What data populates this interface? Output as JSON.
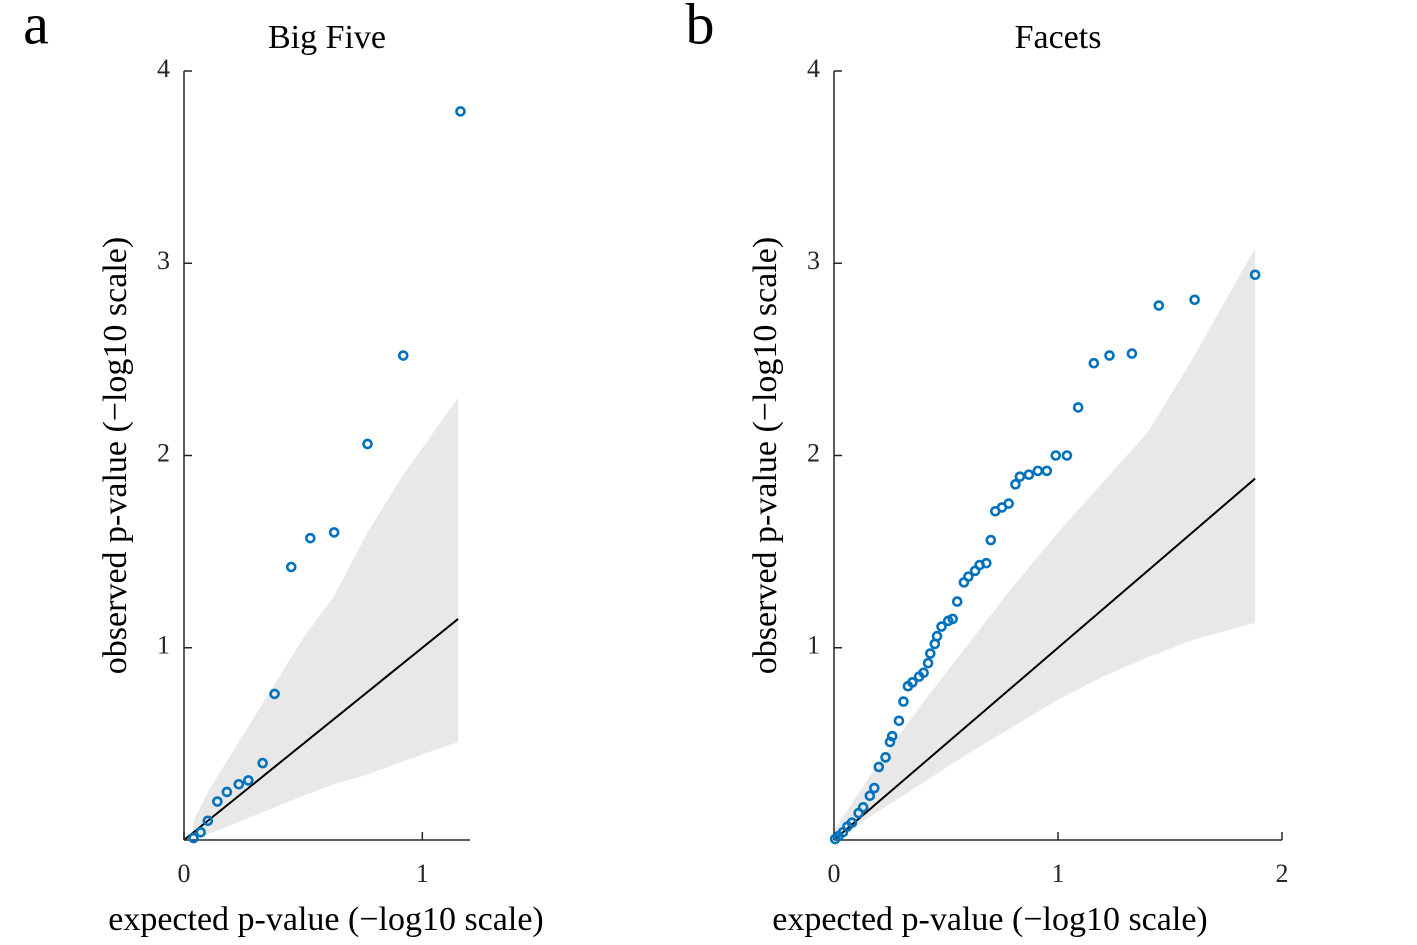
{
  "chart_data": [
    {
      "type": "scatter",
      "panel": "a",
      "title": "Big Five",
      "xlabel": "expected p-value (−log10 scale)",
      "ylabel": "observed p-value (−log10 scale)",
      "xlim": [
        0,
        1.2
      ],
      "ylim": [
        0,
        4
      ],
      "xticks": [
        0,
        1
      ],
      "yticks": [
        1,
        2,
        3,
        4
      ],
      "band": {
        "color": "#e8e8e8",
        "x": [
          0.04,
          0.1,
          0.2,
          0.3,
          0.4,
          0.5,
          0.63,
          0.77,
          0.92,
          1.15
        ],
        "lower": [
          0,
          0.03,
          0.08,
          0.13,
          0.18,
          0.23,
          0.29,
          0.34,
          0.41,
          0.51
        ],
        "upper": [
          0.1,
          0.25,
          0.45,
          0.65,
          0.85,
          1.05,
          1.27,
          1.6,
          1.9,
          2.3
        ]
      },
      "reference": {
        "color": "#000000",
        "x": [
          0,
          1.15
        ],
        "y": [
          0,
          1.15
        ]
      },
      "series": [
        {
          "color": "#0072bd",
          "x": [
            0.04,
            0.07,
            0.1,
            0.14,
            0.18,
            0.23,
            0.27,
            0.33,
            0.38,
            0.45,
            0.53,
            0.63,
            0.77,
            0.92,
            1.16
          ],
          "y": [
            0.01,
            0.04,
            0.1,
            0.2,
            0.25,
            0.29,
            0.31,
            0.4,
            0.76,
            1.42,
            1.57,
            1.6,
            2.06,
            2.52,
            3.79
          ]
        }
      ]
    },
    {
      "type": "scatter",
      "panel": "b",
      "title": "Facets",
      "xlabel": "expected p-value (−log10 scale)",
      "ylabel": "observed p-value (−log10 scale)",
      "xlim": [
        0,
        2
      ],
      "ylim": [
        0,
        4
      ],
      "xticks": [
        0,
        1,
        2
      ],
      "yticks": [
        1,
        2,
        3,
        4
      ],
      "band": {
        "color": "#e8e8e8",
        "x": [
          0,
          0.2,
          0.4,
          0.6,
          0.8,
          1.0,
          1.2,
          1.4,
          1.6,
          1.88
        ],
        "lower": [
          0,
          0.15,
          0.3,
          0.45,
          0.59,
          0.73,
          0.85,
          0.95,
          1.04,
          1.13
        ],
        "upper": [
          0.05,
          0.4,
          0.72,
          1.02,
          1.32,
          1.6,
          1.86,
          2.12,
          2.5,
          3.08
        ]
      },
      "reference": {
        "color": "#000000",
        "x": [
          0,
          1.88
        ],
        "y": [
          0,
          1.88
        ]
      },
      "series": [
        {
          "color": "#0072bd",
          "x": [
            0.005,
            0.02,
            0.04,
            0.06,
            0.08,
            0.11,
            0.13,
            0.16,
            0.18,
            0.2,
            0.23,
            0.25,
            0.26,
            0.29,
            0.31,
            0.33,
            0.35,
            0.38,
            0.4,
            0.42,
            0.43,
            0.45,
            0.46,
            0.48,
            0.51,
            0.53,
            0.55,
            0.58,
            0.6,
            0.63,
            0.65,
            0.68,
            0.7,
            0.72,
            0.75,
            0.78,
            0.81,
            0.83,
            0.87,
            0.91,
            0.95,
            0.99,
            1.04,
            1.09,
            1.16,
            1.23,
            1.33,
            1.45,
            1.61,
            1.88
          ],
          "y": [
            0.005,
            0.02,
            0.04,
            0.07,
            0.09,
            0.14,
            0.17,
            0.23,
            0.27,
            0.38,
            0.43,
            0.51,
            0.54,
            0.62,
            0.72,
            0.8,
            0.82,
            0.85,
            0.87,
            0.92,
            0.97,
            1.02,
            1.06,
            1.11,
            1.14,
            1.15,
            1.24,
            1.34,
            1.37,
            1.4,
            1.43,
            1.44,
            1.56,
            1.71,
            1.73,
            1.75,
            1.85,
            1.89,
            1.9,
            1.92,
            1.92,
            2.0,
            2.0,
            2.25,
            2.48,
            2.52,
            2.53,
            2.78,
            2.81,
            2.94
          ]
        }
      ]
    }
  ]
}
